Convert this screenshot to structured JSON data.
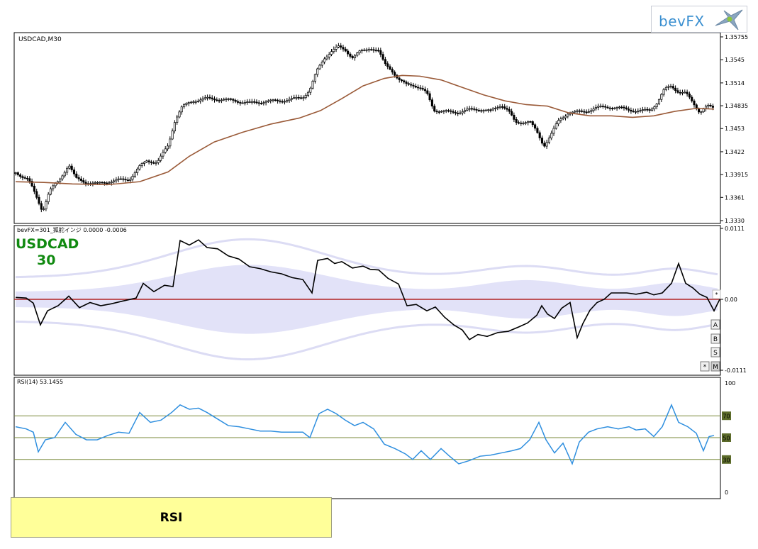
{
  "logo": {
    "text": "bevFX"
  },
  "caption": "RSI",
  "chart_data": [
    {
      "type": "candlestick",
      "title": "USDCAD,M30",
      "yticks": [
        1.35755,
        1.3545,
        1.3514,
        1.34835,
        1.3453,
        1.3422,
        1.33915,
        1.3361,
        1.333
      ],
      "ylim": [
        1.333,
        1.35755
      ],
      "grid": false,
      "colors": {
        "candles": "#000000",
        "moving_average": "#9a5a38"
      },
      "close_path": [
        [
          0,
          1.3394
        ],
        [
          18,
          1.3385
        ],
        [
          30,
          1.336
        ],
        [
          38,
          1.3343
        ],
        [
          48,
          1.337
        ],
        [
          60,
          1.3382
        ],
        [
          75,
          1.3405
        ],
        [
          85,
          1.3386
        ],
        [
          100,
          1.3381
        ],
        [
          115,
          1.3379
        ],
        [
          130,
          1.3382
        ],
        [
          145,
          1.3384
        ],
        [
          160,
          1.3385
        ],
        [
          175,
          1.3402
        ],
        [
          185,
          1.341
        ],
        [
          200,
          1.3408
        ],
        [
          215,
          1.343
        ],
        [
          225,
          1.3465
        ],
        [
          235,
          1.3482
        ],
        [
          250,
          1.349
        ],
        [
          270,
          1.3493
        ],
        [
          290,
          1.3492
        ],
        [
          310,
          1.349
        ],
        [
          330,
          1.3487
        ],
        [
          350,
          1.3489
        ],
        [
          370,
          1.349
        ],
        [
          390,
          1.3492
        ],
        [
          405,
          1.3495
        ],
        [
          415,
          1.3505
        ],
        [
          425,
          1.353
        ],
        [
          435,
          1.3547
        ],
        [
          445,
          1.3556
        ],
        [
          455,
          1.3562
        ],
        [
          465,
          1.3558
        ],
        [
          475,
          1.3548
        ],
        [
          485,
          1.3555
        ],
        [
          500,
          1.3561
        ],
        [
          512,
          1.3556
        ],
        [
          520,
          1.354
        ],
        [
          530,
          1.3532
        ],
        [
          540,
          1.3518
        ],
        [
          550,
          1.3512
        ],
        [
          560,
          1.3512
        ],
        [
          570,
          1.3507
        ],
        [
          580,
          1.35
        ],
        [
          590,
          1.3478
        ],
        [
          600,
          1.3476
        ],
        [
          612,
          1.3475
        ],
        [
          625,
          1.3475
        ],
        [
          640,
          1.3478
        ],
        [
          655,
          1.3479
        ],
        [
          670,
          1.3476
        ],
        [
          685,
          1.3485
        ],
        [
          695,
          1.3477
        ],
        [
          705,
          1.346
        ],
        [
          715,
          1.3462
        ],
        [
          725,
          1.3463
        ],
        [
          735,
          1.3448
        ],
        [
          745,
          1.343
        ],
        [
          755,
          1.3445
        ],
        [
          765,
          1.3462
        ],
        [
          780,
          1.3475
        ],
        [
          800,
          1.3475
        ],
        [
          820,
          1.3481
        ],
        [
          840,
          1.3482
        ],
        [
          860,
          1.3479
        ],
        [
          880,
          1.3476
        ],
        [
          895,
          1.3478
        ],
        [
          905,
          1.3488
        ],
        [
          915,
          1.3505
        ],
        [
          925,
          1.351
        ],
        [
          935,
          1.3502
        ],
        [
          945,
          1.35
        ],
        [
          955,
          1.3488
        ],
        [
          965,
          1.3475
        ],
        [
          975,
          1.3483
        ],
        [
          985,
          1.348
        ]
      ],
      "moving_average": [
        [
          0,
          1.3382
        ],
        [
          40,
          1.3381
        ],
        [
          80,
          1.3379
        ],
        [
          130,
          1.3378
        ],
        [
          175,
          1.3382
        ],
        [
          215,
          1.3395
        ],
        [
          245,
          1.3416
        ],
        [
          280,
          1.3435
        ],
        [
          320,
          1.3448
        ],
        [
          360,
          1.3459
        ],
        [
          400,
          1.3467
        ],
        [
          430,
          1.3477
        ],
        [
          460,
          1.3493
        ],
        [
          490,
          1.351
        ],
        [
          520,
          1.352
        ],
        [
          545,
          1.3524
        ],
        [
          570,
          1.3523
        ],
        [
          600,
          1.3518
        ],
        [
          630,
          1.3508
        ],
        [
          660,
          1.3498
        ],
        [
          690,
          1.349
        ],
        [
          720,
          1.3485
        ],
        [
          750,
          1.3483
        ],
        [
          780,
          1.3474
        ],
        [
          810,
          1.347
        ],
        [
          840,
          1.347
        ],
        [
          870,
          1.3468
        ],
        [
          900,
          1.347
        ],
        [
          930,
          1.3476
        ],
        [
          960,
          1.348
        ],
        [
          985,
          1.3479
        ]
      ]
    },
    {
      "type": "line",
      "label": "bevFX=301_狐舵インジ 0.0000 -0.0006",
      "symbol_text": "USDCAD",
      "period_text": "30",
      "yticks": [
        "0.0111",
        "0.00",
        "-0.0111"
      ],
      "ylim": [
        -0.0111,
        0.0111
      ],
      "zero_line": 0.0,
      "buttons": [
        "A",
        "B",
        "S",
        "M",
        "*",
        "*"
      ],
      "colors": {
        "line": "#000000",
        "zero": "#b22222",
        "band": "#e2e2f8"
      },
      "series": [
        [
          0,
          0.0003
        ],
        [
          15,
          0.0002
        ],
        [
          25,
          -0.0006
        ],
        [
          35,
          -0.004
        ],
        [
          45,
          -0.0018
        ],
        [
          60,
          -0.001
        ],
        [
          75,
          0.0005
        ],
        [
          90,
          -0.0013
        ],
        [
          105,
          -0.0005
        ],
        [
          120,
          -0.001
        ],
        [
          135,
          -0.0007
        ],
        [
          150,
          -0.0003
        ],
        [
          170,
          0.0002
        ],
        [
          180,
          0.0025
        ],
        [
          195,
          0.0012
        ],
        [
          210,
          0.0022
        ],
        [
          222,
          0.002
        ],
        [
          232,
          0.0092
        ],
        [
          245,
          0.0085
        ],
        [
          258,
          0.0093
        ],
        [
          270,
          0.0081
        ],
        [
          285,
          0.0079
        ],
        [
          300,
          0.0068
        ],
        [
          315,
          0.0063
        ],
        [
          330,
          0.0051
        ],
        [
          345,
          0.0048
        ],
        [
          360,
          0.0043
        ],
        [
          375,
          0.004
        ],
        [
          390,
          0.0034
        ],
        [
          405,
          0.0031
        ],
        [
          418,
          0.001
        ],
        [
          426,
          0.0061
        ],
        [
          440,
          0.0064
        ],
        [
          450,
          0.0056
        ],
        [
          460,
          0.0059
        ],
        [
          475,
          0.0049
        ],
        [
          490,
          0.0052
        ],
        [
          500,
          0.0047
        ],
        [
          512,
          0.0046
        ],
        [
          525,
          0.0033
        ],
        [
          540,
          0.0024
        ],
        [
          552,
          -0.001
        ],
        [
          565,
          -0.0008
        ],
        [
          580,
          -0.0018
        ],
        [
          592,
          -0.0012
        ],
        [
          605,
          -0.0028
        ],
        [
          618,
          -0.004
        ],
        [
          630,
          -0.0048
        ],
        [
          640,
          -0.0063
        ],
        [
          652,
          -0.0055
        ],
        [
          665,
          -0.0058
        ],
        [
          680,
          -0.0052
        ],
        [
          695,
          -0.005
        ],
        [
          710,
          -0.0043
        ],
        [
          722,
          -0.0037
        ],
        [
          735,
          -0.0025
        ],
        [
          742,
          -0.001
        ],
        [
          750,
          -0.0023
        ],
        [
          760,
          -0.003
        ],
        [
          770,
          -0.0014
        ],
        [
          782,
          -0.0005
        ],
        [
          792,
          -0.006
        ],
        [
          800,
          -0.0038
        ],
        [
          810,
          -0.0017
        ],
        [
          820,
          -0.0005
        ],
        [
          830,
          0.0
        ],
        [
          840,
          0.001
        ],
        [
          850,
          0.001
        ],
        [
          862,
          0.001
        ],
        [
          875,
          0.0008
        ],
        [
          890,
          0.0011
        ],
        [
          900,
          0.0007
        ],
        [
          912,
          0.001
        ],
        [
          925,
          0.0025
        ],
        [
          935,
          0.0056
        ],
        [
          945,
          0.0025
        ],
        [
          955,
          0.0018
        ],
        [
          965,
          0.0008
        ],
        [
          975,
          0.0003
        ],
        [
          985,
          -0.0018
        ],
        [
          993,
          0.0
        ]
      ]
    },
    {
      "type": "line",
      "label": "RSI(14) 53.1455",
      "yticks": [
        "100",
        "70",
        "50",
        "30",
        "0"
      ],
      "ylim": [
        0,
        100
      ],
      "levels": [
        70,
        50,
        30
      ],
      "level_labels": [
        "70",
        "50",
        "30"
      ],
      "colors": {
        "line": "#2f8fdf",
        "levels": "#7a8a3a"
      },
      "series": [
        [
          0,
          60
        ],
        [
          15,
          58
        ],
        [
          25,
          55
        ],
        [
          32,
          37
        ],
        [
          42,
          48
        ],
        [
          55,
          50
        ],
        [
          70,
          64
        ],
        [
          85,
          53
        ],
        [
          100,
          48
        ],
        [
          115,
          48
        ],
        [
          130,
          52
        ],
        [
          145,
          55
        ],
        [
          160,
          54
        ],
        [
          175,
          73
        ],
        [
          190,
          64
        ],
        [
          205,
          66
        ],
        [
          220,
          73
        ],
        [
          232,
          80
        ],
        [
          245,
          76
        ],
        [
          258,
          77
        ],
        [
          270,
          73
        ],
        [
          285,
          67
        ],
        [
          300,
          61
        ],
        [
          315,
          60
        ],
        [
          330,
          58
        ],
        [
          345,
          56
        ],
        [
          360,
          56
        ],
        [
          375,
          55
        ],
        [
          390,
          55
        ],
        [
          405,
          55
        ],
        [
          415,
          50
        ],
        [
          428,
          72
        ],
        [
          440,
          76
        ],
        [
          452,
          72
        ],
        [
          465,
          66
        ],
        [
          478,
          61
        ],
        [
          490,
          64
        ],
        [
          505,
          58
        ],
        [
          520,
          44
        ],
        [
          535,
          40
        ],
        [
          550,
          35
        ],
        [
          560,
          30
        ],
        [
          572,
          38
        ],
        [
          585,
          30
        ],
        [
          600,
          40
        ],
        [
          612,
          33
        ],
        [
          625,
          26
        ],
        [
          640,
          29
        ],
        [
          655,
          33
        ],
        [
          670,
          34
        ],
        [
          685,
          36
        ],
        [
          700,
          38
        ],
        [
          712,
          40
        ],
        [
          725,
          48
        ],
        [
          738,
          64
        ],
        [
          748,
          48
        ],
        [
          760,
          36
        ],
        [
          772,
          45
        ],
        [
          785,
          26
        ],
        [
          795,
          46
        ],
        [
          808,
          55
        ],
        [
          820,
          58
        ],
        [
          835,
          60
        ],
        [
          850,
          58
        ],
        [
          865,
          60
        ],
        [
          875,
          57
        ],
        [
          888,
          58
        ],
        [
          900,
          51
        ],
        [
          912,
          60
        ],
        [
          925,
          80
        ],
        [
          935,
          64
        ],
        [
          948,
          60
        ],
        [
          960,
          54
        ],
        [
          970,
          38
        ],
        [
          978,
          51
        ],
        [
          985,
          52
        ]
      ]
    }
  ]
}
